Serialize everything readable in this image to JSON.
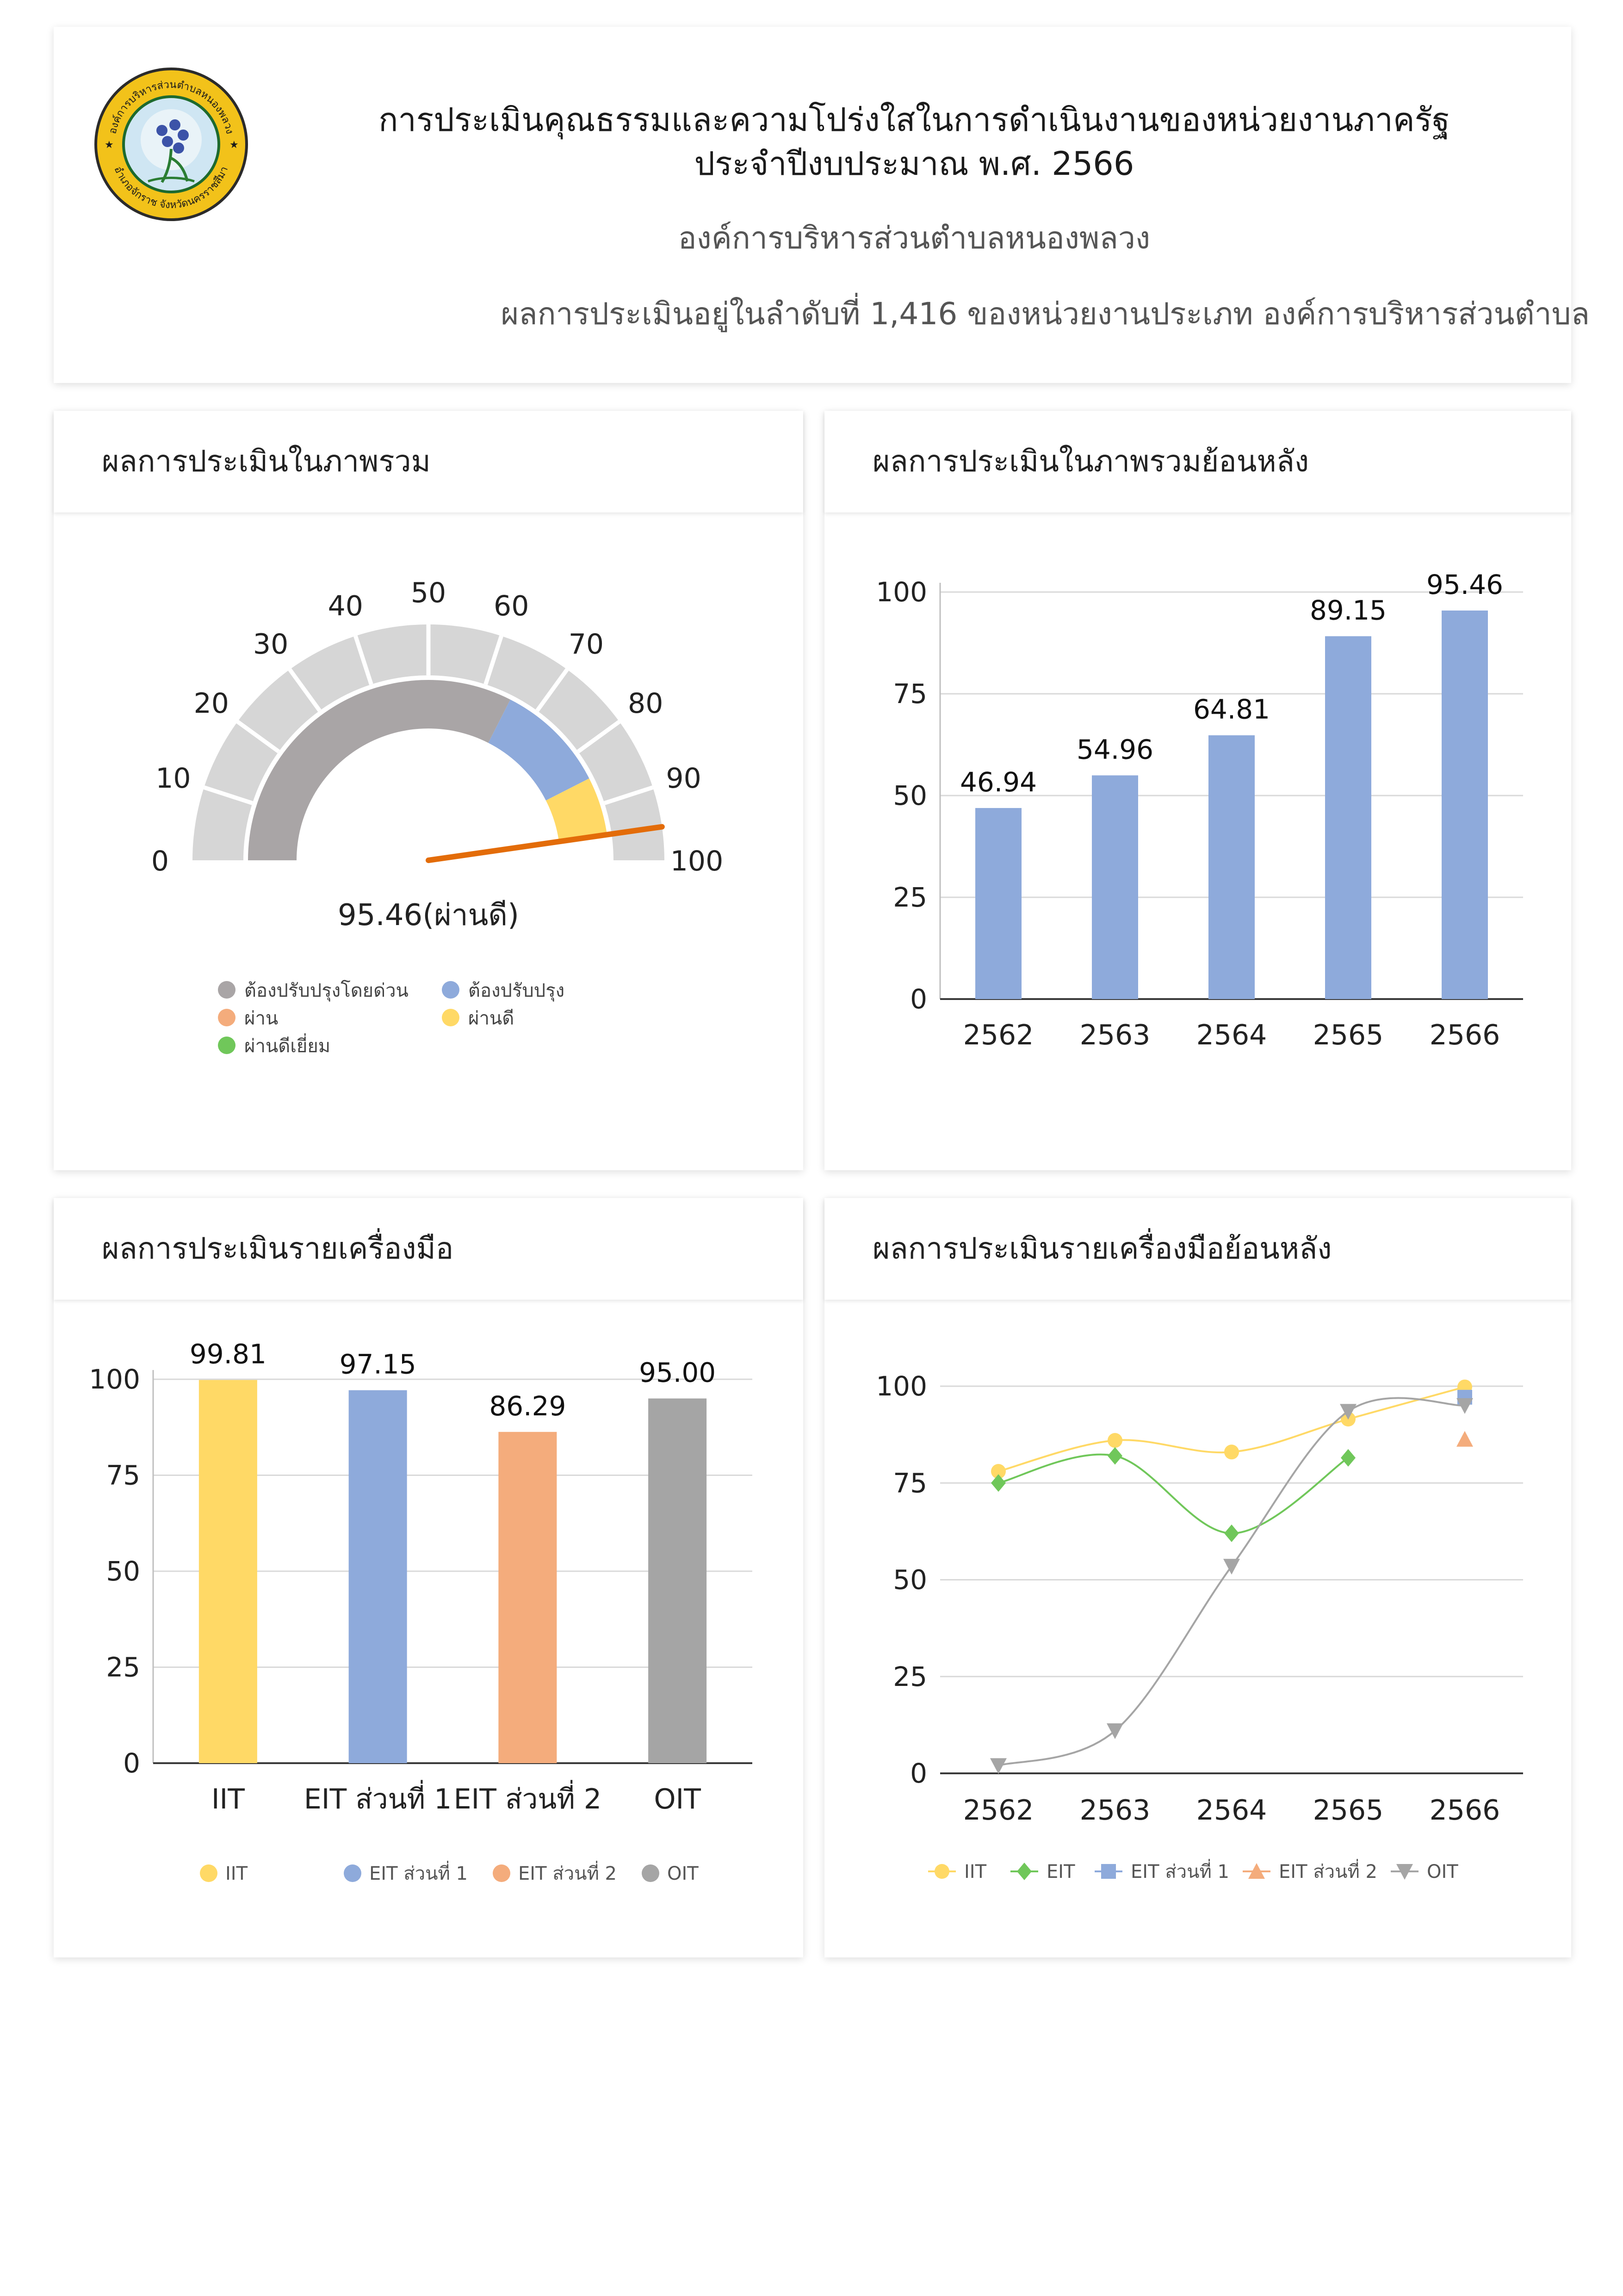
{
  "header": {
    "title_line1": "การประเมินคุณธรรมและความโปร่งใสในการดำเนินงานของหน่วยงานภาครัฐ",
    "title_line2": "ประจำปีงบประมาณ พ.ศ. 2566",
    "organization": "องค์การบริหารส่วนตำบลหนองพลวง",
    "rank_text": "ผลการประเมินอยู่ในลำดับที่ 1,416 ของหน่วยงานประเภท องค์การบริหารส่วนตำบล",
    "logo_text_top": "องค์การบริหารส่วนตำบลหนองพลวง",
    "logo_text_bottom": "อำเภอจักราช จังหวัดนครราชสีมา"
  },
  "cards": {
    "overall_title": "ผลการประเมินในภาพรวม",
    "history_title": "ผลการประเมินในภาพรวมย้อนหลัง",
    "tools_title": "ผลการประเมินรายเครื่องมือ",
    "tools_history_title": "ผลการประเมินรายเครื่องมือย้อนหลัง"
  },
  "colors": {
    "gray_band": "#a9a5a6",
    "blue": "#8eaadb",
    "orange": "#f4ac7c",
    "yellow": "#ffd966",
    "green": "#70c75a",
    "gauge_outer": "#d6d6d6",
    "needle": "#e36c09",
    "oit_gray": "#a5a5a5",
    "grid": "#d9d9d9"
  },
  "chart_data": [
    {
      "type": "gauge",
      "value": 95.46,
      "value_label": "95.46(ผ่านดี)",
      "min": 0,
      "max": 100,
      "ticks": [
        "0",
        "10",
        "20",
        "30",
        "40",
        "50",
        "60",
        "70",
        "80",
        "90",
        "100"
      ],
      "bands": [
        {
          "name": "ต้องปรับปรุงโดยด่วน",
          "from": 0,
          "to": 65,
          "color": "#a9a5a6"
        },
        {
          "name": "ต้องปรับปรุง",
          "from": 65,
          "to": 85,
          "color": "#8eaadb"
        },
        {
          "name": "ผ่านดี",
          "from": 85,
          "to": 95,
          "color": "#ffd966"
        }
      ],
      "legend": [
        {
          "label": "ต้องปรับปรุงโดยด่วน",
          "color": "#a9a5a6"
        },
        {
          "label": "ต้องปรับปรุง",
          "color": "#8eaadb"
        },
        {
          "label": "ผ่าน",
          "color": "#f4ac7c"
        },
        {
          "label": "ผ่านดี",
          "color": "#ffd966"
        },
        {
          "label": "ผ่านดีเยี่ยม",
          "color": "#70c75a"
        }
      ]
    },
    {
      "type": "bar",
      "categories": [
        "2562",
        "2563",
        "2564",
        "2565",
        "2566"
      ],
      "values": [
        46.94,
        54.96,
        64.81,
        89.15,
        95.46
      ],
      "value_labels": [
        "46.94",
        "54.96",
        "64.81",
        "89.15",
        "95.46"
      ],
      "ylim": [
        0,
        100
      ],
      "yticks": [
        "0",
        "25",
        "50",
        "75",
        "100"
      ],
      "color": "#8eaadb",
      "grid": true
    },
    {
      "type": "bar",
      "categories": [
        "IIT",
        "EIT ส่วนที่ 1",
        "EIT ส่วนที่ 2",
        "OIT"
      ],
      "values": [
        99.81,
        97.15,
        86.29,
        95.0
      ],
      "value_labels": [
        "99.81",
        "97.15",
        "86.29",
        "95.00"
      ],
      "colors": [
        "#ffd966",
        "#8eaadb",
        "#f4ac7c",
        "#a5a5a5"
      ],
      "ylim": [
        0,
        100
      ],
      "yticks": [
        "0",
        "25",
        "50",
        "75",
        "100"
      ],
      "legend": [
        "IIT",
        "EIT ส่วนที่ 1",
        "EIT ส่วนที่ 2",
        "OIT"
      ],
      "grid": true
    },
    {
      "type": "line",
      "x": [
        "2562",
        "2563",
        "2564",
        "2565",
        "2566"
      ],
      "ylim": [
        0,
        100
      ],
      "yticks": [
        "0",
        "25",
        "50",
        "75",
        "100"
      ],
      "series": [
        {
          "name": "IIT",
          "values": [
            78,
            86,
            83,
            91.5,
            99.81
          ],
          "color": "#ffd966",
          "marker": "circle"
        },
        {
          "name": "EIT",
          "values": [
            75,
            82,
            62,
            81.5,
            null
          ],
          "color": "#70c75a",
          "marker": "diamond"
        },
        {
          "name": "EIT ส่วนที่ 1",
          "values": [
            null,
            null,
            null,
            null,
            97.15
          ],
          "color": "#8eaadb",
          "marker": "square"
        },
        {
          "name": "EIT ส่วนที่ 2",
          "values": [
            null,
            null,
            null,
            null,
            86.29
          ],
          "color": "#f4ac7c",
          "marker": "triangle-up"
        },
        {
          "name": "OIT",
          "values": [
            2,
            11,
            53.5,
            93.5,
            95.0
          ],
          "color": "#a5a5a5",
          "marker": "triangle-down"
        }
      ],
      "grid": true
    }
  ]
}
